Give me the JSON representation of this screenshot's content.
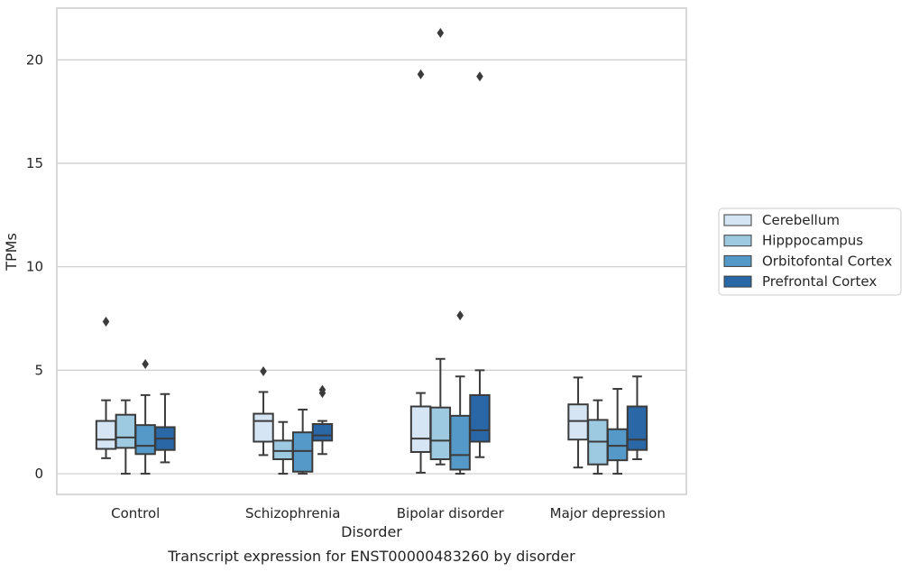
{
  "chart_data": {
    "type": "box",
    "xlabel": "Disorder",
    "ylabel": "TPMs",
    "caption": "Transcript expression for ENST00000483260 by disorder",
    "ylim": [
      -1,
      22.5
    ],
    "yticks": [
      0,
      5,
      10,
      15,
      20
    ],
    "grid": "horizontal",
    "legend_position": "right",
    "categories": [
      "Control",
      "Schizophrenia",
      "Bipolar disorder",
      "Major depression"
    ],
    "series": [
      {
        "name": "Cerebellum",
        "color": "#d6e5f3",
        "boxes": [
          {
            "whislo": 0.75,
            "q1": 1.2,
            "med": 1.65,
            "q3": 2.55,
            "whishi": 3.55,
            "fliers": [
              7.35
            ]
          },
          {
            "whislo": 0.9,
            "q1": 1.55,
            "med": 2.55,
            "q3": 2.9,
            "whishi": 3.95,
            "fliers": [
              4.95
            ]
          },
          {
            "whislo": 0.05,
            "q1": 1.05,
            "med": 1.7,
            "q3": 3.25,
            "whishi": 3.9,
            "fliers": [
              19.3
            ]
          },
          {
            "whislo": 0.3,
            "q1": 1.65,
            "med": 2.55,
            "q3": 3.35,
            "whishi": 4.65,
            "fliers": []
          }
        ]
      },
      {
        "name": "Hipppocampus",
        "color": "#9ecae1",
        "boxes": [
          {
            "whislo": 0.0,
            "q1": 1.25,
            "med": 1.75,
            "q3": 2.85,
            "whishi": 3.55,
            "fliers": []
          },
          {
            "whislo": 0.0,
            "q1": 0.7,
            "med": 1.1,
            "q3": 1.6,
            "whishi": 2.5,
            "fliers": []
          },
          {
            "whislo": 0.45,
            "q1": 0.7,
            "med": 1.6,
            "q3": 3.2,
            "whishi": 5.55,
            "fliers": [
              21.3
            ]
          },
          {
            "whislo": 0.0,
            "q1": 0.45,
            "med": 1.55,
            "q3": 2.6,
            "whishi": 3.55,
            "fliers": []
          }
        ]
      },
      {
        "name": "Orbitofontal Cortex",
        "color": "#5499c7",
        "boxes": [
          {
            "whislo": 0.0,
            "q1": 0.95,
            "med": 1.35,
            "q3": 2.35,
            "whishi": 3.8,
            "fliers": [
              5.3
            ]
          },
          {
            "whislo": 0.0,
            "q1": 0.1,
            "med": 1.1,
            "q3": 2.0,
            "whishi": 3.1,
            "fliers": []
          },
          {
            "whislo": 0.0,
            "q1": 0.2,
            "med": 0.9,
            "q3": 2.8,
            "whishi": 4.7,
            "fliers": [
              7.65
            ]
          },
          {
            "whislo": 0.0,
            "q1": 0.65,
            "med": 1.35,
            "q3": 2.15,
            "whishi": 4.1,
            "fliers": []
          }
        ]
      },
      {
        "name": "Prefrontal Cortex",
        "color": "#2967a7",
        "boxes": [
          {
            "whislo": 0.55,
            "q1": 1.15,
            "med": 1.7,
            "q3": 2.25,
            "whishi": 3.85,
            "fliers": []
          },
          {
            "whislo": 0.95,
            "q1": 1.6,
            "med": 1.85,
            "q3": 2.4,
            "whishi": 2.55,
            "fliers": [
              3.9,
              4.05
            ]
          },
          {
            "whislo": 0.8,
            "q1": 1.55,
            "med": 2.1,
            "q3": 3.8,
            "whishi": 5.0,
            "fliers": [
              19.2
            ]
          },
          {
            "whislo": 0.7,
            "q1": 1.15,
            "med": 1.65,
            "q3": 3.25,
            "whishi": 4.7,
            "fliers": []
          }
        ]
      }
    ]
  }
}
